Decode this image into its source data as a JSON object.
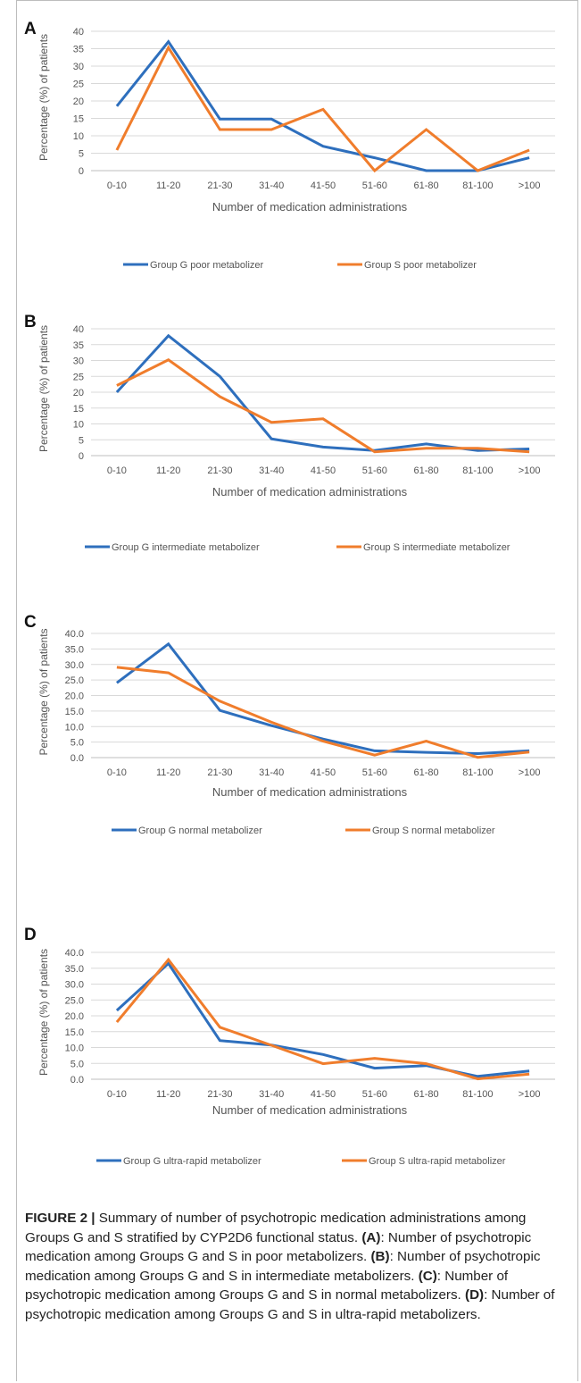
{
  "chart_data": [
    {
      "type": "line",
      "panel_label": "A",
      "xlabel": "Number of medication administrations",
      "ylabel": "Percentage (%) of patients",
      "categories": [
        "0-10",
        "11-20",
        "21-30",
        "31-40",
        "41-50",
        "51-60",
        "61-80",
        "81-100",
        ">100"
      ],
      "ylim": [
        0,
        40
      ],
      "yticks": [
        "0",
        "5",
        "10",
        "15",
        "20",
        "25",
        "30",
        "35",
        "40"
      ],
      "grid": true,
      "legend_position": "bottom",
      "series": [
        {
          "name": "Group G poor metabolizer",
          "color": "#2e6fbd",
          "values": [
            18.5,
            37.0,
            14.8,
            14.8,
            7.0,
            3.7,
            0,
            0,
            3.7
          ]
        },
        {
          "name": "Group S poor metabolizer",
          "color": "#f07d2c",
          "values": [
            5.9,
            35.3,
            11.8,
            11.8,
            17.6,
            0,
            11.8,
            0,
            5.9
          ]
        }
      ]
    },
    {
      "type": "line",
      "panel_label": "B",
      "xlabel": "Number of medication administrations",
      "ylabel": "Percentage (%) of patients",
      "categories": [
        "0-10",
        "11-20",
        "21-30",
        "31-40",
        "41-50",
        "51-60",
        "61-80",
        "81-100",
        ">100"
      ],
      "ylim": [
        0,
        40
      ],
      "yticks": [
        "0",
        "5",
        "10",
        "15",
        "20",
        "25",
        "30",
        "35",
        "40"
      ],
      "grid": true,
      "legend_position": "bottom",
      "series": [
        {
          "name": "Group G intermediate metabolizer",
          "color": "#2e6fbd",
          "values": [
            20.0,
            37.8,
            25.0,
            5.3,
            2.7,
            1.6,
            3.7,
            1.6,
            2.1
          ]
        },
        {
          "name": "Group S intermediate metabolizer",
          "color": "#f07d2c",
          "values": [
            22.1,
            30.2,
            18.6,
            10.5,
            11.6,
            1.2,
            2.3,
            2.3,
            1.2
          ]
        }
      ]
    },
    {
      "type": "line",
      "panel_label": "C",
      "xlabel": "Number of medication administrations",
      "ylabel": "Percentage (%) of patients",
      "categories": [
        "0-10",
        "11-20",
        "21-30",
        "31-40",
        "41-50",
        "51-60",
        "61-80",
        "81-100",
        ">100"
      ],
      "ylim": [
        0,
        40
      ],
      "yticks": [
        "0.0",
        "5.0",
        "10.0",
        "15.0",
        "20.0",
        "25.0",
        "30.0",
        "35.0",
        "40.0"
      ],
      "grid": true,
      "legend_position": "bottom",
      "series": [
        {
          "name": "Group G normal metabolizer",
          "color": "#2e6fbd",
          "values": [
            24.1,
            36.6,
            15.2,
            10.3,
            6.0,
            2.2,
            1.7,
            1.3,
            2.2
          ]
        },
        {
          "name": "Group S normal metabolizer",
          "color": "#f07d2c",
          "values": [
            29.1,
            27.3,
            18.2,
            11.4,
            5.3,
            0.8,
            5.3,
            0.1,
            1.8
          ]
        }
      ]
    },
    {
      "type": "line",
      "panel_label": "D",
      "xlabel": "Number of medication administrations",
      "ylabel": "Percentage (%) of patients",
      "categories": [
        "0-10",
        "11-20",
        "21-30",
        "31-40",
        "41-50",
        "51-60",
        "61-80",
        "81-100",
        ">100"
      ],
      "ylim": [
        0,
        40
      ],
      "yticks": [
        "0.0",
        "5.0",
        "10.0",
        "15.0",
        "20.0",
        "25.0",
        "30.0",
        "35.0",
        "40.0"
      ],
      "grid": true,
      "legend_position": "bottom",
      "series": [
        {
          "name": "Group G ultra-rapid metabolizer",
          "color": "#2e6fbd",
          "values": [
            21.7,
            36.5,
            12.2,
            10.8,
            7.8,
            3.5,
            4.3,
            0.9,
            2.6
          ]
        },
        {
          "name": "Group S ultra-rapid metabolizer",
          "color": "#f07d2c",
          "values": [
            18.0,
            37.7,
            16.4,
            10.7,
            4.9,
            6.6,
            4.9,
            0.1,
            1.6
          ]
        }
      ]
    }
  ],
  "caption": {
    "lead": "FIGURE 2 |",
    "intro": " Summary of number of psychotropic medication administrations among Groups G and S stratified by CYP2D6 functional status.",
    "parts": [
      {
        "tag": "(A)",
        "text": ": Number of psychotropic medication among Groups G and S in poor metabolizers."
      },
      {
        "tag": "(B)",
        "text": ": Number of psychotropic medication among Groups G and S in intermediate metabolizers."
      },
      {
        "tag": "(C)",
        "text": ": Number of psychotropic medication among Groups G and S in normal metabolizers."
      },
      {
        "tag": "(D)",
        "text": ": Number of psychotropic medication among Groups G and S in ultra-rapid metabolizers."
      }
    ]
  }
}
